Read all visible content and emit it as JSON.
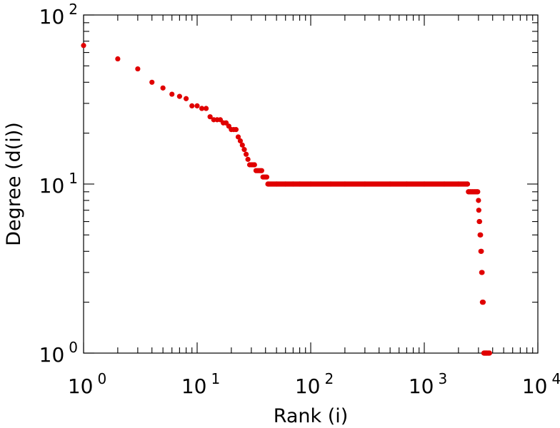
{
  "chart_data": {
    "type": "scatter",
    "title": "",
    "xlabel": "Rank (i)",
    "ylabel": "Degree (d(i))",
    "xscale": "log",
    "yscale": "log",
    "xlim": [
      1,
      10000
    ],
    "ylim": [
      1,
      100
    ],
    "grid": false,
    "point_color": "#e00000",
    "x_ticks": [
      {
        "base": "10",
        "exp": "0"
      },
      {
        "base": "10",
        "exp": "1"
      },
      {
        "base": "10",
        "exp": "2"
      },
      {
        "base": "10",
        "exp": "3"
      },
      {
        "base": "10",
        "exp": "4"
      }
    ],
    "y_ticks": [
      {
        "base": "10",
        "exp": "0"
      },
      {
        "base": "10",
        "exp": "1"
      },
      {
        "base": "10",
        "exp": "2"
      }
    ],
    "series": [
      {
        "points": [
          [
            1,
            66
          ],
          [
            2,
            55
          ],
          [
            3,
            48
          ],
          [
            4,
            40
          ],
          [
            5,
            37
          ],
          [
            6,
            34
          ],
          [
            7,
            33
          ],
          [
            8,
            32
          ],
          [
            9,
            29
          ],
          [
            10,
            29
          ],
          [
            11,
            28
          ],
          [
            12,
            28
          ],
          [
            13,
            25
          ],
          [
            14,
            24
          ],
          [
            15,
            24
          ],
          [
            16,
            24
          ],
          [
            17,
            23
          ],
          [
            18,
            23
          ],
          [
            19,
            22
          ],
          [
            20,
            21
          ],
          [
            21,
            21
          ],
          [
            22,
            21
          ],
          [
            23,
            19
          ],
          [
            24,
            18
          ],
          [
            25,
            17
          ],
          [
            26,
            16
          ],
          [
            27,
            15
          ],
          [
            28,
            14
          ],
          [
            29,
            13
          ],
          [
            30,
            13
          ],
          [
            31,
            13
          ],
          [
            32,
            13
          ],
          [
            33,
            12
          ],
          [
            34,
            12
          ],
          [
            35,
            12
          ],
          [
            36,
            12
          ],
          [
            37,
            12
          ],
          [
            38,
            11
          ],
          [
            39,
            11
          ],
          [
            40,
            11
          ],
          [
            41,
            11
          ],
          [
            42,
            10
          ],
          [
            50,
            10
          ],
          [
            60,
            10
          ],
          [
            70,
            10
          ],
          [
            80,
            10
          ],
          [
            100,
            10
          ],
          [
            150,
            10
          ],
          [
            200,
            10
          ],
          [
            300,
            10
          ],
          [
            500,
            10
          ],
          [
            700,
            10
          ],
          [
            1000,
            10
          ],
          [
            1500,
            10
          ],
          [
            2000,
            10
          ],
          [
            2400,
            10
          ],
          [
            2450,
            9
          ],
          [
            2550,
            9
          ],
          [
            2650,
            9
          ],
          [
            2750,
            9
          ],
          [
            2850,
            9
          ],
          [
            2950,
            9
          ],
          [
            3000,
            8
          ],
          [
            3020,
            7
          ],
          [
            3050,
            6
          ],
          [
            3070,
            6
          ],
          [
            3100,
            5
          ],
          [
            3130,
            5
          ],
          [
            3150,
            4
          ],
          [
            3180,
            4
          ],
          [
            3200,
            3
          ],
          [
            3230,
            3
          ],
          [
            3250,
            2
          ],
          [
            3300,
            2
          ],
          [
            3350,
            1
          ],
          [
            3400,
            1
          ],
          [
            3450,
            1
          ],
          [
            3500,
            1
          ],
          [
            3550,
            1
          ],
          [
            3650,
            1
          ],
          [
            3750,
            1
          ]
        ]
      }
    ]
  }
}
